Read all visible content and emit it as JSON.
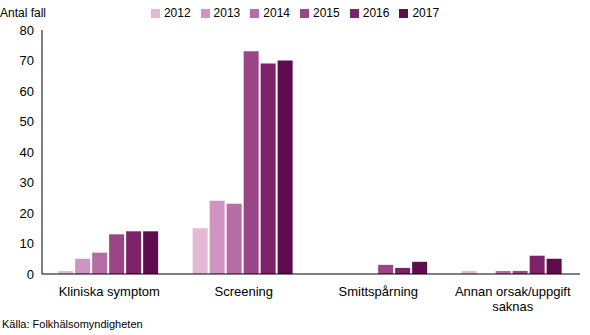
{
  "chart_data": {
    "type": "bar",
    "ylabel": "Antal fall",
    "source": "Källa: Folkhälsomyndigheten",
    "categories": [
      "Kliniska symptom",
      "Screening",
      "Smittspårning",
      "Annan orsak/uppgift saknas"
    ],
    "series": [
      {
        "name": "2012",
        "color": "#e3b9d4",
        "values": [
          1,
          15,
          0,
          1
        ]
      },
      {
        "name": "2013",
        "color": "#cf94bf",
        "values": [
          5,
          24,
          0,
          0
        ]
      },
      {
        "name": "2014",
        "color": "#b56ea5",
        "values": [
          7,
          23,
          0,
          1
        ]
      },
      {
        "name": "2015",
        "color": "#9a4586",
        "values": [
          13,
          73,
          3,
          1
        ]
      },
      {
        "name": "2016",
        "color": "#7d2269",
        "values": [
          14,
          69,
          2,
          6
        ]
      },
      {
        "name": "2017",
        "color": "#5f0c4f",
        "values": [
          14,
          70,
          4,
          5
        ]
      }
    ],
    "ylim": [
      0,
      80
    ],
    "yticks": [
      0,
      10,
      20,
      30,
      40,
      50,
      60,
      70,
      80
    ],
    "grid": false,
    "legend": "top"
  }
}
